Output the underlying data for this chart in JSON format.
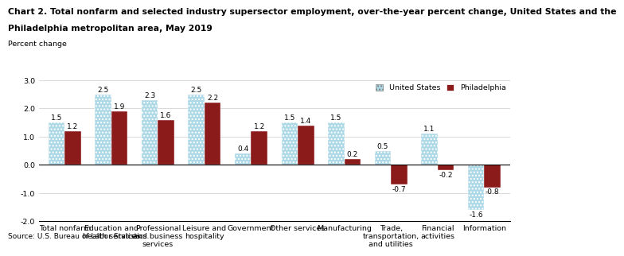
{
  "title_line1": "Chart 2. Total nonfarm and selected industry supersector employment, over-the-year percent change, United States and the",
  "title_line2": "Philadelphia metropolitan area, May 2019",
  "ylabel_label": "Percent change",
  "source": "Source: U.S. Bureau of Labor Statistics.",
  "categories": [
    "Total nonfarm",
    "Education and\nhealth services",
    "Professional\nand business\nservices",
    "Leisure and\nhospitality",
    "Government",
    "Other services",
    "Manufacturing",
    "Trade,\ntransportation,\nand utilities",
    "Financial\nactivities",
    "Information"
  ],
  "us_values": [
    1.5,
    2.5,
    2.3,
    2.5,
    0.4,
    1.5,
    1.5,
    0.5,
    1.1,
    -1.6
  ],
  "philly_values": [
    1.2,
    1.9,
    1.6,
    2.2,
    1.2,
    1.4,
    0.2,
    -0.7,
    -0.2,
    -0.8
  ],
  "us_color": "#add8e6",
  "philly_color": "#8b1a1a",
  "ylim": [
    -2.0,
    3.0
  ],
  "yticks": [
    -2.0,
    -1.0,
    0.0,
    1.0,
    2.0,
    3.0
  ],
  "ytick_labels": [
    "-2.0",
    "-1.0",
    "0.0",
    "1.0",
    "2.0",
    "3.0"
  ],
  "legend_us": "United States",
  "legend_philly": "Philadelphia",
  "bar_width": 0.35,
  "title_fontsize": 7.8,
  "label_fontsize": 6.8,
  "tick_fontsize": 6.8,
  "value_fontsize": 6.5,
  "source_fontsize": 6.5
}
